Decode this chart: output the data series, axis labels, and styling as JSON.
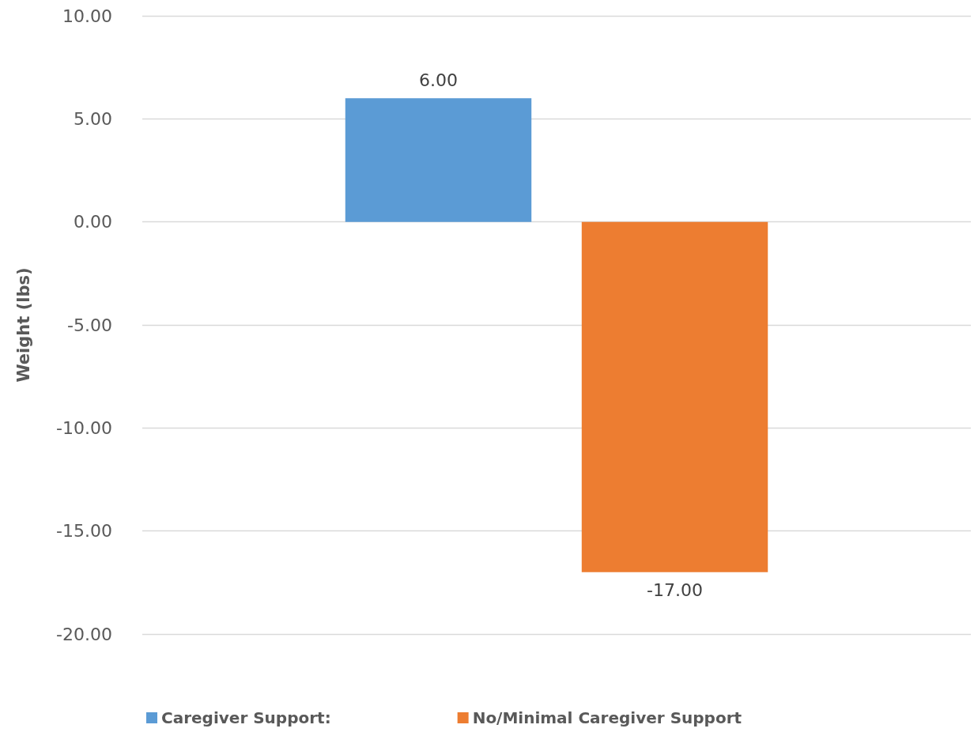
{
  "chart_data": {
    "type": "bar",
    "ylabel": "Weight (lbs)",
    "categories": [
      null
    ],
    "series": [
      {
        "name": "Caregiver Support:",
        "color": "#5b9bd5",
        "values": [
          6
        ],
        "value_labels": [
          "6.00"
        ]
      },
      {
        "name": "No/Minimal Caregiver Support",
        "color": "#ed7d31",
        "values": [
          -17
        ],
        "value_labels": [
          "-17.00"
        ]
      }
    ],
    "ylim": [
      -20,
      10
    ],
    "yticks": [
      {
        "value": -20,
        "label": "-20.00"
      },
      {
        "value": -15,
        "label": "-15.00"
      },
      {
        "value": -10,
        "label": "-10.00"
      },
      {
        "value": -5,
        "label": "-5.00"
      },
      {
        "value": 0,
        "label": "0.00"
      },
      {
        "value": 5,
        "label": "5.00"
      },
      {
        "value": 10,
        "label": "10.00"
      }
    ],
    "grid": "y",
    "legend": "bottom"
  }
}
